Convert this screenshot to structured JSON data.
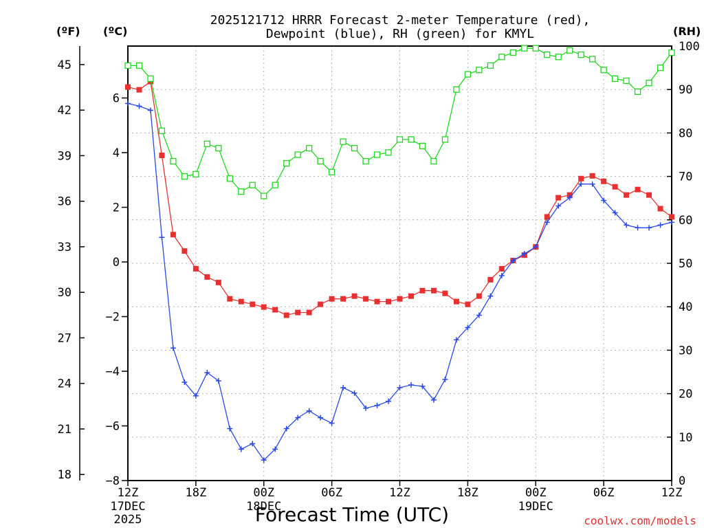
{
  "chart_data": {
    "type": "line",
    "title_line1": "2025121712 HRRR Forecast 2-meter Temperature (red),",
    "title_line2": "Dewpoint (blue), RH (green) for KMYL",
    "xlabel": "Forecast Time (UTC)",
    "credit": "coolwx.com/models",
    "unit_f": "(ºF)",
    "unit_c": "(ºC)",
    "unit_rh": "(RH)",
    "x_hours": [
      0,
      1,
      2,
      3,
      4,
      5,
      6,
      7,
      8,
      9,
      10,
      11,
      12,
      13,
      14,
      15,
      16,
      17,
      18,
      19,
      20,
      21,
      22,
      23,
      24,
      25,
      26,
      27,
      28,
      29,
      30,
      31,
      32,
      33,
      34,
      35,
      36,
      37,
      38,
      39,
      40,
      41,
      42,
      43,
      44,
      45,
      46,
      47,
      48
    ],
    "xlim": [
      0,
      48
    ],
    "x_ticks": [
      {
        "hour": 0,
        "line1": "12Z",
        "line2": "17DEC",
        "line3": "2025"
      },
      {
        "hour": 6,
        "line1": "18Z",
        "line2": "",
        "line3": ""
      },
      {
        "hour": 12,
        "line1": "00Z",
        "line2": "18DEC",
        "line3": ""
      },
      {
        "hour": 18,
        "line1": "06Z",
        "line2": "",
        "line3": ""
      },
      {
        "hour": 24,
        "line1": "12Z",
        "line2": "",
        "line3": ""
      },
      {
        "hour": 30,
        "line1": "18Z",
        "line2": "",
        "line3": ""
      },
      {
        "hour": 36,
        "line1": "00Z",
        "line2": "19DEC",
        "line3": ""
      },
      {
        "hour": 42,
        "line1": "06Z",
        "line2": "",
        "line3": ""
      },
      {
        "hour": 48,
        "line1": "12Z",
        "line2": "",
        "line3": ""
      }
    ],
    "y_celsius": {
      "range": [
        -8,
        7.9
      ],
      "ticks": [
        "6",
        "4",
        "2",
        "0",
        "−2",
        "−4",
        "−6",
        "−8"
      ],
      "tick_values": [
        6,
        4,
        2,
        0,
        -2,
        -4,
        -6,
        -8
      ]
    },
    "y_fahrenheit": {
      "ticks": [
        "45",
        "42",
        "39",
        "36",
        "33",
        "30",
        "27",
        "24",
        "21",
        "18"
      ],
      "tick_values": [
        45,
        42,
        39,
        36,
        33,
        30,
        27,
        24,
        21,
        18
      ]
    },
    "y_rh": {
      "range": [
        0,
        100
      ],
      "ticks": [
        "100",
        "90",
        "80",
        "70",
        "60",
        "50",
        "40",
        "30",
        "20",
        "10",
        "0"
      ],
      "tick_values": [
        100,
        90,
        80,
        70,
        60,
        50,
        40,
        30,
        20,
        10,
        0
      ]
    },
    "series": [
      {
        "name": "2-meter Temperature",
        "units": "C",
        "color": "#e83030",
        "marker": "filled-square",
        "values": [
          6.4,
          6.3,
          6.6,
          3.9,
          1.0,
          0.4,
          -0.25,
          -0.55,
          -0.75,
          -1.35,
          -1.45,
          -1.55,
          -1.65,
          -1.75,
          -1.95,
          -1.85,
          -1.85,
          -1.55,
          -1.35,
          -1.35,
          -1.25,
          -1.35,
          -1.45,
          -1.45,
          -1.35,
          -1.25,
          -1.05,
          -1.05,
          -1.15,
          -1.45,
          -1.55,
          -1.25,
          -0.65,
          -0.25,
          0.05,
          0.25,
          0.55,
          1.65,
          2.35,
          2.45,
          3.05,
          3.15,
          2.95,
          2.75,
          2.45,
          2.65,
          2.45,
          1.95,
          1.65
        ]
      },
      {
        "name": "Dewpoint",
        "units": "C",
        "color": "#2848e8",
        "marker": "plus",
        "values": [
          5.8,
          5.7,
          5.55,
          0.9,
          -3.15,
          -4.4,
          -4.9,
          -4.05,
          -4.35,
          -6.1,
          -6.85,
          -6.65,
          -7.25,
          -6.85,
          -6.1,
          -5.7,
          -5.45,
          -5.7,
          -5.9,
          -4.6,
          -4.8,
          -5.35,
          -5.25,
          -5.1,
          -4.6,
          -4.5,
          -4.55,
          -5.05,
          -4.3,
          -2.85,
          -2.4,
          -1.95,
          -1.25,
          -0.5,
          0.05,
          0.3,
          0.55,
          1.45,
          2.05,
          2.35,
          2.85,
          2.85,
          2.25,
          1.8,
          1.35,
          1.25,
          1.25,
          1.35,
          1.45
        ]
      },
      {
        "name": "RH",
        "units": "%",
        "color": "#20d820",
        "marker": "open-square",
        "values": [
          95.5,
          95.5,
          92.5,
          80.5,
          73.5,
          70.0,
          70.5,
          77.5,
          76.5,
          69.5,
          66.5,
          68.0,
          65.5,
          68.0,
          73.0,
          75.0,
          76.5,
          73.5,
          71.0,
          78.0,
          76.5,
          73.5,
          75.0,
          75.5,
          78.5,
          78.5,
          77.0,
          73.5,
          78.5,
          90.0,
          93.5,
          94.5,
          95.5,
          97.5,
          98.5,
          99.5,
          99.5,
          98.0,
          97.5,
          99.0,
          98.0,
          97.0,
          94.5,
          92.5,
          92.0,
          89.5,
          91.5,
          95.0,
          98.5
        ]
      }
    ]
  }
}
